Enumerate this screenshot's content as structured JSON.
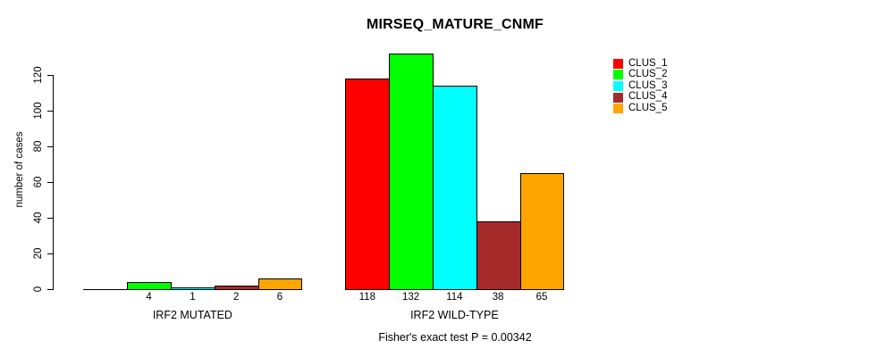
{
  "figure": {
    "background_color": "#FFFFFF",
    "text_color": "#000000"
  },
  "chart_data": {
    "type": "bar",
    "title": "MIRSEQ_MATURE_CNMF",
    "ylabel": "number of cases",
    "xlabel": "",
    "ylim": [
      0,
      135
    ],
    "yticks": [
      0,
      20,
      40,
      60,
      80,
      100,
      120
    ],
    "grid": false,
    "categories": [
      "IRF2 MUTATED",
      "IRF2 WILD-TYPE"
    ],
    "series": [
      {
        "name": "CLUS_1",
        "color": "#FF0000",
        "values": [
          0,
          118
        ]
      },
      {
        "name": "CLUS_2",
        "color": "#00FF00",
        "values": [
          4,
          132
        ]
      },
      {
        "name": "CLUS_3",
        "color": "#00FFFF",
        "values": [
          1,
          114
        ]
      },
      {
        "name": "CLUS_4",
        "color": "#A52A2A",
        "values": [
          2,
          38
        ]
      },
      {
        "name": "CLUS_5",
        "color": "#FFA500",
        "values": [
          6,
          65
        ]
      }
    ],
    "bar_value_labels": [
      [
        "",
        "4",
        "1",
        "2",
        "6"
      ],
      [
        "118",
        "132",
        "114",
        "38",
        "65"
      ]
    ],
    "legend": {
      "position": "top-right",
      "entries": [
        "CLUS_1",
        "CLUS_2",
        "CLUS_3",
        "CLUS_4",
        "CLUS_5"
      ]
    },
    "annotation": "Fisher's exact test P = 0.00342"
  }
}
